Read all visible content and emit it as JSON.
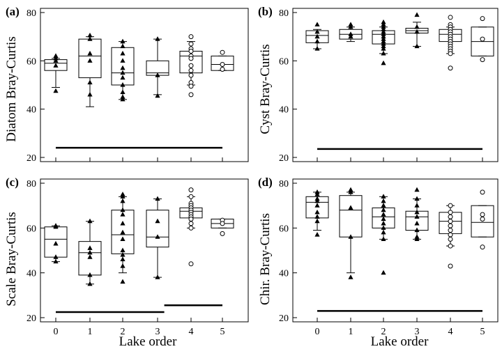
{
  "xlabel": "Lake order",
  "chart_data": [
    {
      "type": "box",
      "panel_label": "(a)",
      "ylabel": "Diatom Bray-Curtis",
      "ylim": [
        20,
        80
      ],
      "yticks": [
        20,
        40,
        60,
        80
      ],
      "categories": [
        "0",
        "1",
        "2",
        "3",
        "4",
        "5"
      ],
      "boxes": [
        {
          "category": "0",
          "whisker_low": 49,
          "q1": 56,
          "median": 59,
          "q3": 60.5,
          "whisker_high": 61
        },
        {
          "category": "1",
          "whisker_low": 41,
          "q1": 53,
          "median": 62,
          "q3": 69,
          "whisker_high": 70
        },
        {
          "category": "2",
          "whisker_low": 44,
          "q1": 50,
          "median": 55,
          "q3": 65.5,
          "whisker_high": 68
        },
        {
          "category": "3",
          "whisker_low": 46,
          "q1": 54,
          "median": 55,
          "q3": 60,
          "whisker_high": 69
        },
        {
          "category": "4",
          "whisker_low": 50,
          "q1": 55,
          "median": 62,
          "q3": 64,
          "whisker_high": 68
        },
        {
          "category": "5",
          "whisker_low": 56,
          "q1": 56,
          "median": 58.5,
          "q3": 62,
          "whisker_high": 62
        }
      ],
      "points": [
        {
          "category": "0",
          "values": [
            62,
            61,
            60,
            58,
            47.5
          ],
          "marker": "triangle"
        },
        {
          "category": "1",
          "values": [
            70.5,
            69,
            63,
            60,
            51,
            46
          ],
          "marker": "triangle"
        },
        {
          "category": "2",
          "values": [
            68,
            66,
            63,
            60,
            57,
            55,
            53,
            50,
            47,
            45,
            44
          ],
          "marker": "triangle"
        },
        {
          "category": "3",
          "values": [
            69,
            54,
            45.5
          ],
          "marker": "triangle"
        },
        {
          "category": "4",
          "values": [
            70,
            67,
            65,
            64,
            62,
            61,
            58,
            56,
            54,
            51,
            49.5,
            46
          ],
          "marker": "circle"
        },
        {
          "category": "5",
          "values": [
            63.5,
            58.5,
            56.5
          ],
          "marker": "circle"
        }
      ],
      "lines": [
        {
          "x_start": "0",
          "x_end": "5",
          "y": 24
        }
      ]
    },
    {
      "type": "box",
      "panel_label": "(b)",
      "ylabel": "Cyst Bray-Curtis",
      "ylim": [
        20,
        80
      ],
      "yticks": [
        20,
        40,
        60,
        80
      ],
      "categories": [
        "0",
        "1",
        "2",
        "3",
        "4",
        "5"
      ],
      "boxes": [
        {
          "category": "0",
          "whisker_low": 65,
          "q1": 67.5,
          "median": 70.5,
          "q3": 72.5,
          "whisker_high": 73
        },
        {
          "category": "1",
          "whisker_low": 68,
          "q1": 69,
          "median": 71,
          "q3": 73,
          "whisker_high": 74
        },
        {
          "category": "2",
          "whisker_low": 63,
          "q1": 67,
          "median": 71,
          "q3": 72.5,
          "whisker_high": 74
        },
        {
          "category": "3",
          "whisker_low": 66,
          "q1": 71.5,
          "median": 72.5,
          "q3": 73.5,
          "whisker_high": 76
        },
        {
          "category": "4",
          "whisker_low": 63,
          "q1": 68,
          "median": 71,
          "q3": 73,
          "whisker_high": 74
        },
        {
          "category": "5",
          "whisker_low": 62,
          "q1": 62,
          "median": 68,
          "q3": 74,
          "whisker_high": 74
        }
      ],
      "points": [
        {
          "category": "0",
          "values": [
            75,
            72,
            70,
            68,
            65
          ],
          "marker": "triangle"
        },
        {
          "category": "1",
          "values": [
            75,
            74,
            71,
            70
          ],
          "marker": "triangle"
        },
        {
          "category": "2",
          "values": [
            76,
            75,
            74,
            73,
            72,
            71,
            70,
            69,
            68,
            67,
            66,
            65,
            63,
            59
          ],
          "marker": "triangle"
        },
        {
          "category": "3",
          "values": [
            79,
            74,
            72,
            66
          ],
          "marker": "triangle"
        },
        {
          "category": "4",
          "values": [
            78,
            75,
            74,
            73,
            72,
            71,
            70,
            69,
            68,
            67,
            66,
            65,
            64,
            63,
            57
          ],
          "marker": "circle"
        },
        {
          "category": "5",
          "values": [
            77.5,
            69,
            60.5
          ],
          "marker": "circle"
        }
      ],
      "lines": [
        {
          "x_start": "0",
          "x_end": "5",
          "y": 23.5
        }
      ]
    },
    {
      "type": "box",
      "panel_label": "(c)",
      "ylabel": "Scale Bray-Curtis",
      "ylim": [
        20,
        80
      ],
      "yticks": [
        20,
        40,
        60,
        80
      ],
      "categories": [
        "0",
        "1",
        "2",
        "3",
        "4",
        "5"
      ],
      "boxes": [
        {
          "category": "0",
          "whisker_low": 45,
          "q1": 47,
          "median": 55,
          "q3": 60.5,
          "whisker_high": 61
        },
        {
          "category": "1",
          "whisker_low": 35,
          "q1": 39,
          "median": 49,
          "q3": 54,
          "whisker_high": 63
        },
        {
          "category": "2",
          "whisker_low": 40,
          "q1": 48.5,
          "median": 57,
          "q3": 68,
          "whisker_high": 74
        },
        {
          "category": "3",
          "whisker_low": 38,
          "q1": 51.5,
          "median": 56,
          "q3": 68,
          "whisker_high": 73
        },
        {
          "category": "4",
          "whisker_low": 60,
          "q1": 64.5,
          "median": 67.5,
          "q3": 69,
          "whisker_high": 74
        },
        {
          "category": "5",
          "whisker_low": 60,
          "q1": 60,
          "median": 62,
          "q3": 64,
          "whisker_high": 64
        }
      ],
      "points": [
        {
          "category": "0",
          "values": [
            61,
            60.5,
            53,
            47,
            45
          ],
          "marker": "triangle"
        },
        {
          "category": "1",
          "values": [
            63,
            51,
            49,
            47,
            39,
            35
          ],
          "marker": "triangle"
        },
        {
          "category": "2",
          "values": [
            75,
            74,
            72,
            68,
            66,
            62,
            58,
            55,
            50,
            48,
            46,
            43,
            36
          ],
          "marker": "triangle"
        },
        {
          "category": "3",
          "values": [
            73,
            63,
            56,
            38
          ],
          "marker": "triangle"
        },
        {
          "category": "4",
          "values": [
            77,
            74,
            71,
            70,
            69,
            68,
            67,
            66,
            65,
            64,
            62,
            60,
            44
          ],
          "marker": "circle"
        },
        {
          "category": "5",
          "values": [
            63.5,
            62,
            57.5
          ],
          "marker": "circle"
        }
      ],
      "lines": [
        {
          "x_start": "0",
          "x_end": "3.2",
          "y": 22.5
        },
        {
          "x_start": "3.2",
          "x_end": "5",
          "y": 25.5
        }
      ]
    },
    {
      "type": "box",
      "panel_label": "(d)",
      "ylabel": "Chir. Bray-Curtis",
      "ylim": [
        20,
        80
      ],
      "yticks": [
        20,
        40,
        60,
        80
      ],
      "categories": [
        "0",
        "1",
        "2",
        "3",
        "4",
        "5"
      ],
      "boxes": [
        {
          "category": "0",
          "whisker_low": 59,
          "q1": 64.5,
          "median": 71.5,
          "q3": 74,
          "whisker_high": 76
        },
        {
          "category": "1",
          "whisker_low": 40,
          "q1": 56,
          "median": 68,
          "q3": 74.5,
          "whisker_high": 76
        },
        {
          "category": "2",
          "whisker_low": 55,
          "q1": 60,
          "median": 65,
          "q3": 69,
          "whisker_high": 74
        },
        {
          "category": "3",
          "whisker_low": 55,
          "q1": 59,
          "median": 65,
          "q3": 67.5,
          "whisker_high": 73
        },
        {
          "category": "4",
          "whisker_low": 52,
          "q1": 57.5,
          "median": 63,
          "q3": 67,
          "whisker_high": 70
        },
        {
          "category": "5",
          "whisker_low": 56,
          "q1": 56,
          "median": 62.5,
          "q3": 70,
          "whisker_high": 70
        }
      ],
      "points": [
        {
          "category": "0",
          "values": [
            76,
            75,
            73,
            72,
            70,
            67,
            65,
            63,
            57
          ],
          "marker": "triangle"
        },
        {
          "category": "1",
          "values": [
            77,
            76,
            69,
            56,
            38
          ],
          "marker": "triangle"
        },
        {
          "category": "2",
          "values": [
            74,
            72,
            70,
            68,
            66,
            64,
            62,
            60,
            58,
            55,
            40
          ],
          "marker": "triangle"
        },
        {
          "category": "3",
          "values": [
            77,
            73,
            70,
            67,
            65,
            62,
            59,
            56,
            55
          ],
          "marker": "triangle"
        },
        {
          "category": "4",
          "values": [
            70,
            67,
            65,
            63,
            61,
            59,
            57,
            55,
            52,
            43
          ],
          "marker": "circle"
        },
        {
          "category": "5",
          "values": [
            76,
            66,
            64,
            51.5
          ],
          "marker": "circle"
        }
      ],
      "lines": [
        {
          "x_start": "0",
          "x_end": "5",
          "y": 23
        }
      ]
    }
  ]
}
